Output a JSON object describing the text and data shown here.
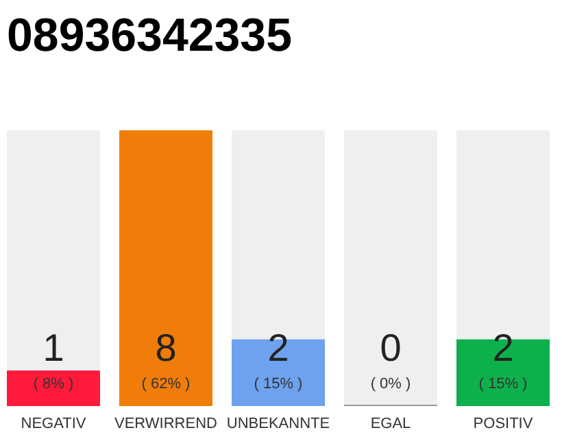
{
  "chart_data": {
    "type": "bar",
    "title": "08936342335",
    "categories": [
      "NEGATIV",
      "VERWIRREND",
      "UNBEKANNTE",
      "EGAL",
      "POSITIV"
    ],
    "values": [
      8,
      62,
      15,
      0,
      15
    ],
    "colors": [
      "#ff1a3c",
      "#f07d0a",
      "#6fa2ee",
      "#999999",
      "#0db14b"
    ],
    "value_labels": [
      "( 8% )",
      "( 62% )",
      "( 15% )",
      "( 0% )",
      "( 15% )"
    ],
    "annotations": [
      "1",
      "8",
      "2",
      "0",
      "2"
    ]
  }
}
